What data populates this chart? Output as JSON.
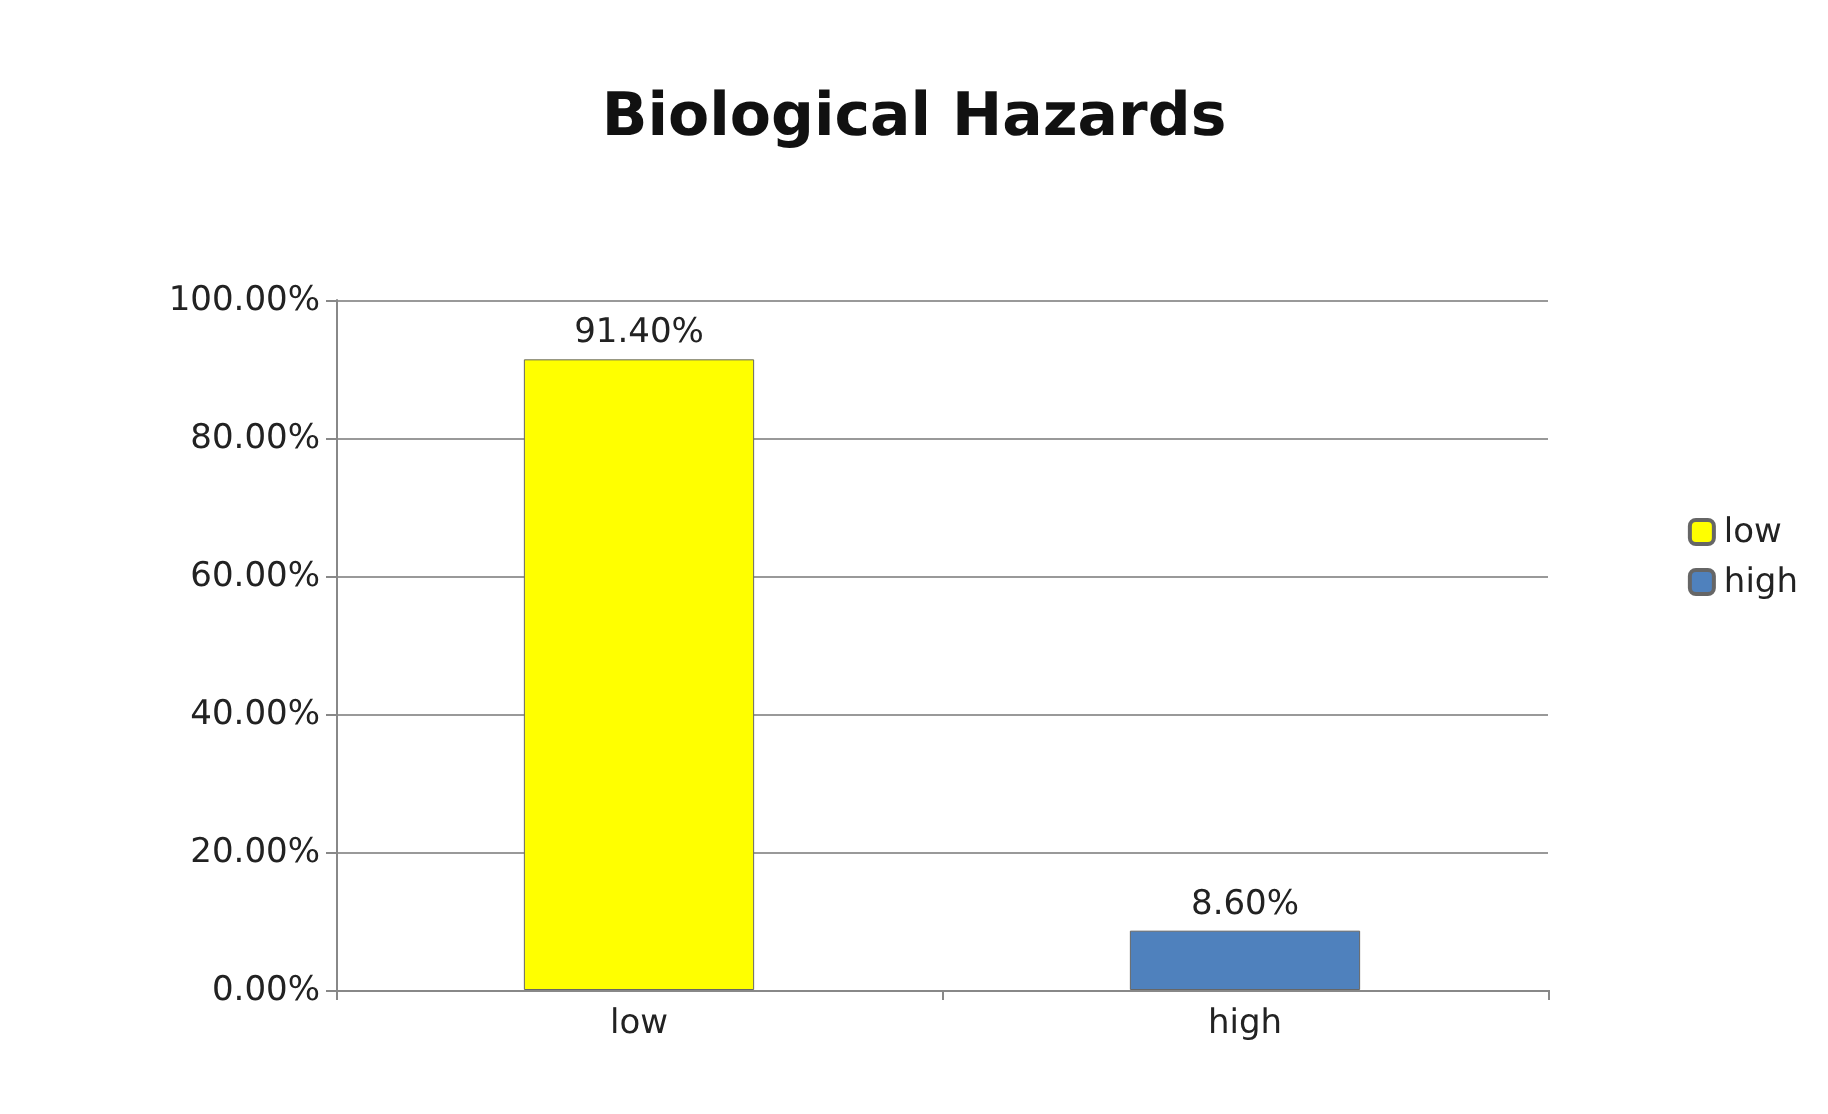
{
  "chart_data": {
    "type": "bar",
    "title": "Biological Hazards",
    "categories": [
      "low",
      "high"
    ],
    "series": [
      {
        "name": "low",
        "color": "#ffff00",
        "values": [
          91.4,
          null
        ],
        "value_labels": [
          "91.40%",
          null
        ]
      },
      {
        "name": "high",
        "color": "#4f81bd",
        "values": [
          null,
          8.6
        ],
        "value_labels": [
          null,
          "8.60%"
        ]
      }
    ],
    "ylim": [
      0,
      100
    ],
    "yticks": [
      {
        "value": 0,
        "label": "0.00%"
      },
      {
        "value": 20,
        "label": "20.00%"
      },
      {
        "value": 40,
        "label": "40.00%"
      },
      {
        "value": 60,
        "label": "60.00%"
      },
      {
        "value": 80,
        "label": "80.00%"
      },
      {
        "value": 100,
        "label": "100.00%"
      }
    ],
    "grid": "y",
    "legend": "right"
  }
}
